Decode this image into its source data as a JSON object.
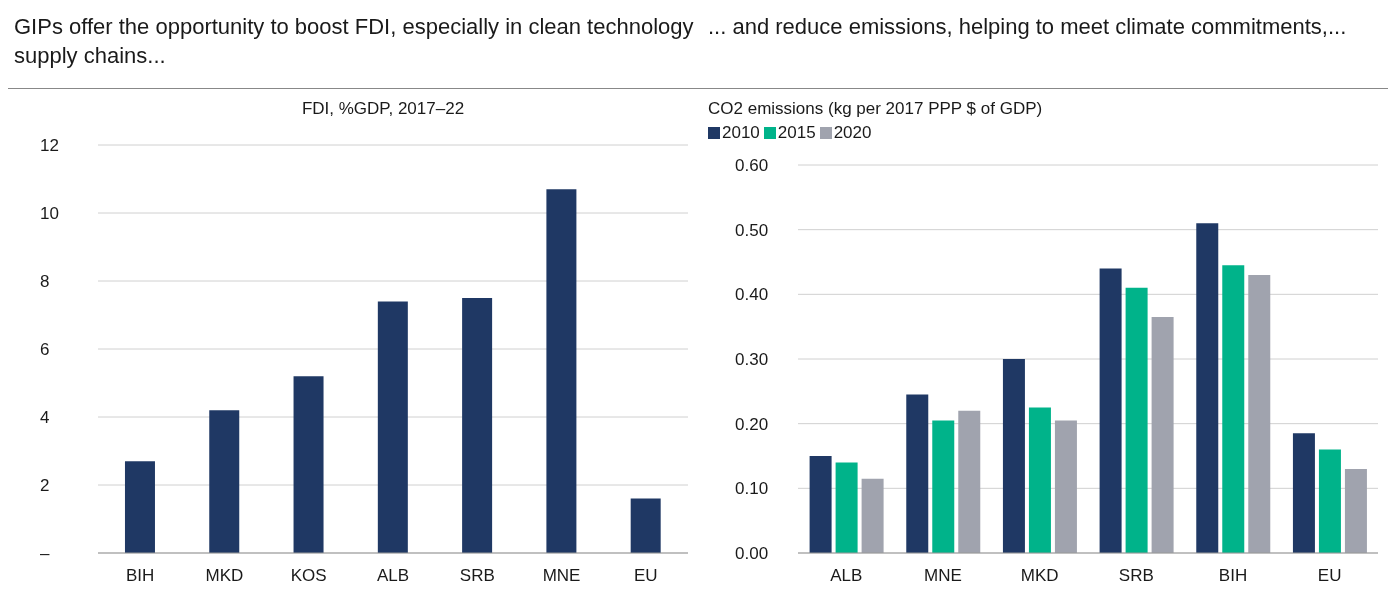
{
  "chart_data": [
    {
      "type": "bar",
      "title": "GIPs offer the opportunity to boost FDI, especially in clean technology supply chains...",
      "subtitle": "FDI, %GDP, 2017–22",
      "categories": [
        "BIH",
        "MKD",
        "KOS",
        "ALB",
        "SRB",
        "MNE",
        "EU"
      ],
      "values": [
        2.7,
        4.2,
        5.2,
        7.4,
        7.5,
        10.7,
        1.6
      ],
      "color": "#1f3864",
      "ylim": [
        0,
        12
      ],
      "yticks": [
        {
          "value": 0,
          "label": "–"
        },
        2,
        4,
        6,
        8,
        10,
        12
      ],
      "grid": "y"
    },
    {
      "type": "bar",
      "title": "... and reduce emissions, helping to meet climate commitments,...",
      "subtitle": "CO2 emissions (kg per 2017 PPP $ of GDP)",
      "categories": [
        "ALB",
        "MNE",
        "MKD",
        "SRB",
        "BIH",
        "EU"
      ],
      "series": [
        {
          "name": "2010",
          "color": "#1f3864",
          "values": [
            0.15,
            0.245,
            0.3,
            0.44,
            0.51,
            0.185
          ]
        },
        {
          "name": "2015",
          "color": "#00b38a",
          "values": [
            0.14,
            0.205,
            0.225,
            0.41,
            0.445,
            0.16
          ]
        },
        {
          "name": "2020",
          "color": "#a0a3ae",
          "values": [
            0.115,
            0.22,
            0.205,
            0.365,
            0.43,
            0.13
          ]
        }
      ],
      "ylim": [
        0,
        0.6
      ],
      "yticks": [
        {
          "value": 0,
          "label": "0.00"
        },
        {
          "value": 0.1,
          "label": "0.10"
        },
        {
          "value": 0.2,
          "label": "0.20"
        },
        {
          "value": 0.3,
          "label": "0.30"
        },
        {
          "value": 0.4,
          "label": "0.40"
        },
        {
          "value": 0.5,
          "label": "0.50"
        },
        {
          "value": 0.6,
          "label": "0.60"
        }
      ],
      "grid": "y",
      "legend": "top left"
    }
  ]
}
